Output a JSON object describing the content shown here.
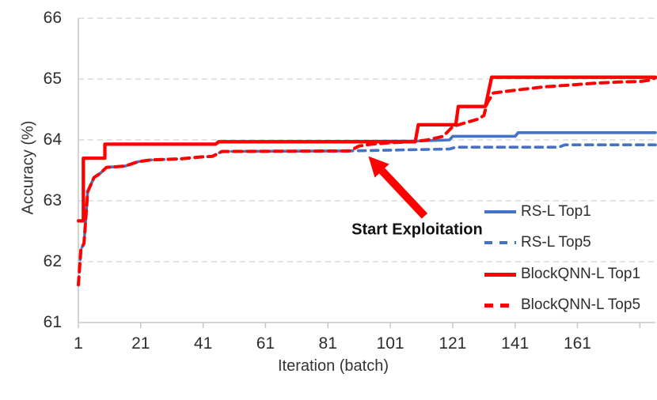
{
  "colors": {
    "red": "#FF0000",
    "blue": "#4472C4",
    "gridline": "#D9D9D9",
    "axis": "#C6C6C6",
    "tick_text": "#2D2D2D",
    "annotation_text": "#111111",
    "background": "#FFFFFF"
  },
  "chart_data": {
    "type": "line",
    "title": "",
    "xlabel": "Iteration (batch)",
    "ylabel": "Accuracy (%)",
    "xlim": [
      1,
      186
    ],
    "ylim": [
      61,
      66
    ],
    "xticks": [
      1,
      21,
      41,
      61,
      81,
      101,
      121,
      141,
      161,
      181
    ],
    "xtick_labels": [
      "1",
      "21",
      "41",
      "61",
      "81",
      "101",
      "121",
      "141",
      "161",
      ""
    ],
    "yticks": [
      61,
      62,
      63,
      64,
      65,
      66
    ],
    "ytick_labels": [
      "61",
      "62",
      "63",
      "64",
      "65",
      "66"
    ],
    "grid": "horizontal dashed gridlines",
    "legend_position": "inside right",
    "series": [
      {
        "name": "RS-L Top1",
        "color": "#4472C4",
        "style": "solid",
        "width": 3.6,
        "dash": null,
        "points": [
          [
            1,
            62.67
          ],
          [
            2.6,
            62.67
          ],
          [
            2.6,
            63.7
          ],
          [
            9.5,
            63.7
          ],
          [
            9.5,
            63.93
          ],
          [
            45,
            63.93
          ],
          [
            46,
            63.97
          ],
          [
            109,
            63.98
          ],
          [
            120,
            64.0
          ],
          [
            121,
            64.06
          ],
          [
            141,
            64.06
          ],
          [
            142,
            64.12
          ],
          [
            186,
            64.12
          ]
        ]
      },
      {
        "name": "RS-L Top5",
        "color": "#4472C4",
        "style": "dashed",
        "width": 3.6,
        "dash": [
          9,
          7
        ],
        "points": [
          [
            1,
            61.62
          ],
          [
            1.8,
            62.2
          ],
          [
            2.8,
            62.3
          ],
          [
            4,
            63.15
          ],
          [
            6,
            63.38
          ],
          [
            8,
            63.45
          ],
          [
            10,
            63.55
          ],
          [
            16,
            63.57
          ],
          [
            20,
            63.64
          ],
          [
            24,
            63.67
          ],
          [
            34,
            63.69
          ],
          [
            40,
            63.72
          ],
          [
            44,
            63.73
          ],
          [
            47,
            63.81
          ],
          [
            88,
            63.82
          ],
          [
            120,
            63.85
          ],
          [
            122,
            63.88
          ],
          [
            155,
            63.88
          ],
          [
            157,
            63.92
          ],
          [
            186,
            63.92
          ]
        ]
      },
      {
        "name": "BlockQNN-L Top1",
        "color": "#FF0000",
        "style": "solid",
        "width": 4.3,
        "dash": null,
        "points": [
          [
            1,
            62.67
          ],
          [
            2.6,
            62.67
          ],
          [
            2.6,
            63.7
          ],
          [
            9.5,
            63.7
          ],
          [
            9.5,
            63.93
          ],
          [
            45,
            63.93
          ],
          [
            46,
            63.97
          ],
          [
            109,
            63.97
          ],
          [
            110,
            64.25
          ],
          [
            122,
            64.25
          ],
          [
            122.8,
            64.55
          ],
          [
            131.5,
            64.55
          ],
          [
            133.5,
            65.03
          ],
          [
            186,
            65.03
          ]
        ]
      },
      {
        "name": "BlockQNN-L Top5",
        "color": "#FF0000",
        "style": "dashed",
        "width": 4.0,
        "dash": [
          10,
          7
        ],
        "points": [
          [
            1,
            61.62
          ],
          [
            1.8,
            62.2
          ],
          [
            2.8,
            62.3
          ],
          [
            4,
            63.15
          ],
          [
            6,
            63.38
          ],
          [
            8,
            63.45
          ],
          [
            10,
            63.55
          ],
          [
            16,
            63.57
          ],
          [
            20,
            63.64
          ],
          [
            24,
            63.67
          ],
          [
            34,
            63.69
          ],
          [
            40,
            63.72
          ],
          [
            44,
            63.73
          ],
          [
            47,
            63.81
          ],
          [
            88,
            63.82
          ],
          [
            91,
            63.9
          ],
          [
            95,
            63.93
          ],
          [
            100,
            63.95
          ],
          [
            108,
            63.97
          ],
          [
            113,
            64.0
          ],
          [
            118,
            64.06
          ],
          [
            121,
            64.22
          ],
          [
            125,
            64.28
          ],
          [
            129,
            64.34
          ],
          [
            131,
            64.4
          ],
          [
            132,
            64.6
          ],
          [
            134,
            64.77
          ],
          [
            140,
            64.81
          ],
          [
            150,
            64.87
          ],
          [
            158,
            64.9
          ],
          [
            166,
            64.93
          ],
          [
            174,
            64.95
          ],
          [
            181,
            64.96
          ],
          [
            184,
            64.98
          ],
          [
            186,
            65.02
          ]
        ]
      }
    ],
    "annotation": {
      "text": "Start Exploitation",
      "text_at": [
        109.6,
        62.52
      ],
      "arrow_from": [
        112,
        62.75
      ],
      "arrow_to": [
        94,
        63.73
      ],
      "arrow_color": "#FF0000"
    }
  },
  "legend": {
    "items": [
      "RS-L Top1",
      "RS-L Top5",
      "BlockQNN-L Top1",
      "BlockQNN-L Top5"
    ]
  }
}
